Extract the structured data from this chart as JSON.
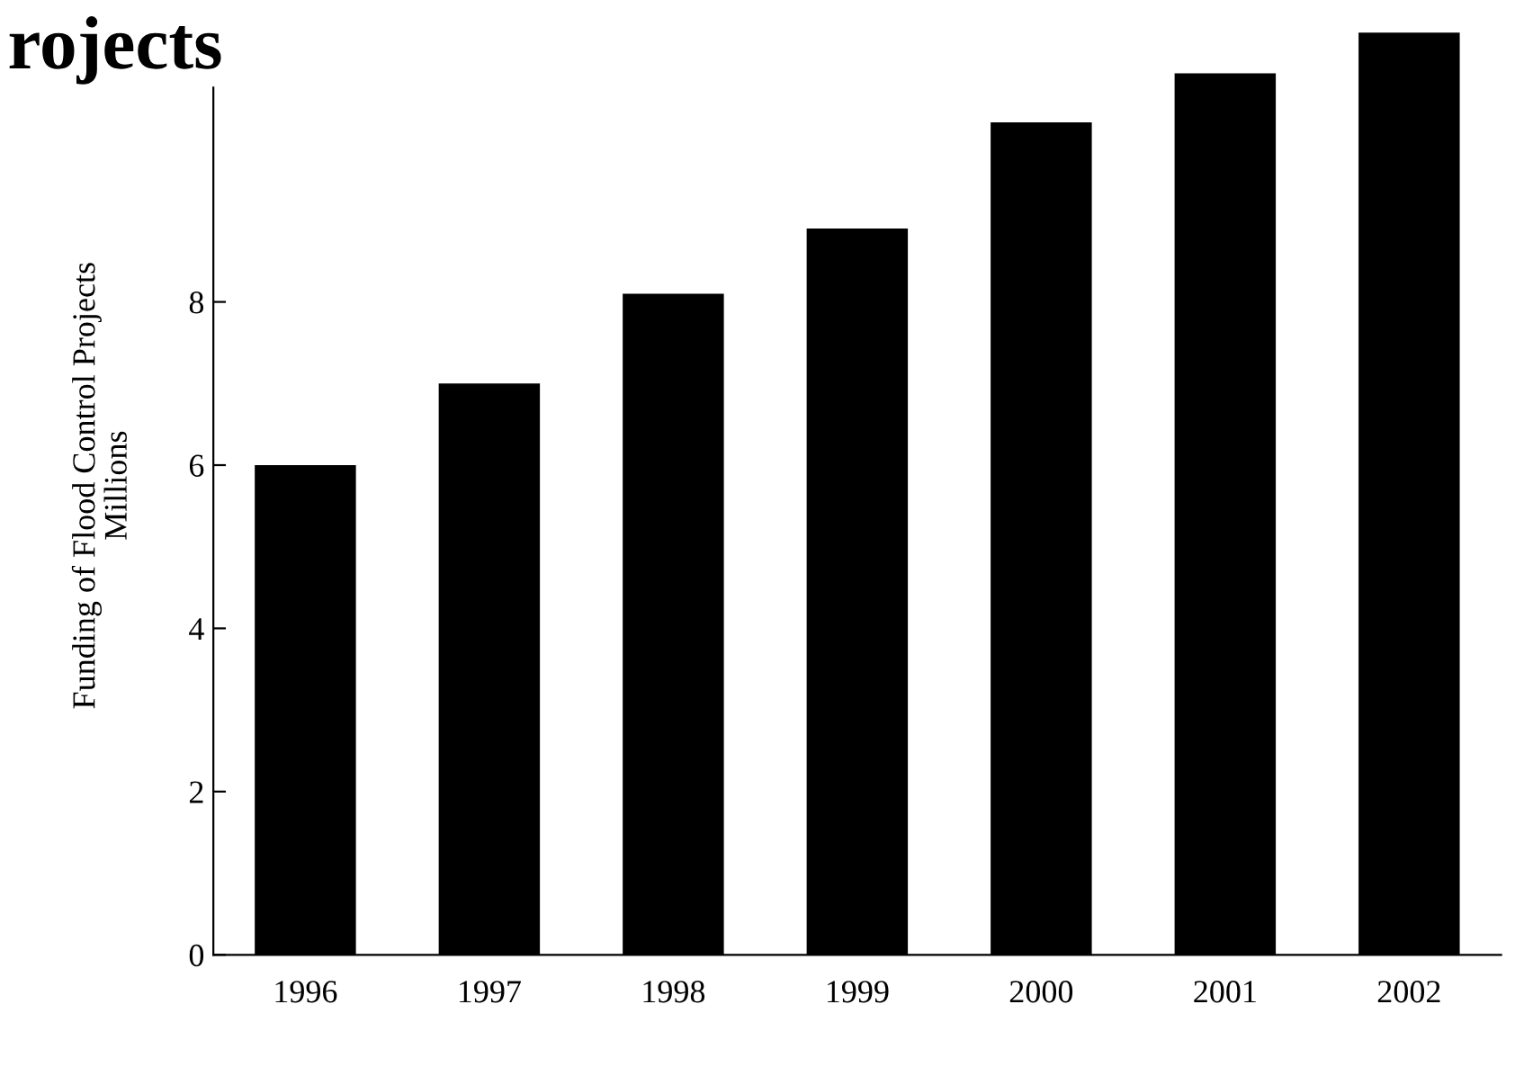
{
  "chart_data": {
    "type": "bar",
    "title": "rojects",
    "ylabel": "Funding of Flood Control Projects\nMillions",
    "categories": [
      "1996",
      "1997",
      "1998",
      "1999",
      "2000",
      "2001",
      "2002"
    ],
    "values": [
      6,
      7,
      8.1,
      8.9,
      10.2,
      10.8,
      11.3
    ],
    "color": "#000000",
    "ylim": [
      0,
      11.5
    ],
    "yticks": [
      0,
      2,
      4,
      6,
      8
    ],
    "grid": false,
    "legend": false
  }
}
